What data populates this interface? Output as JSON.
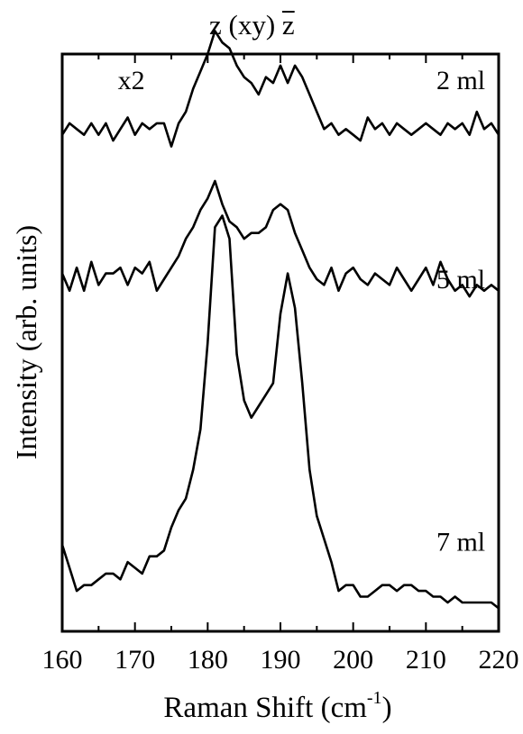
{
  "chart_data": {
    "type": "line",
    "title": "z (xy) z",
    "xlabel": "Raman Shift (cm",
    "xlabel_sup": "-1",
    "xlabel_close": ")",
    "ylabel": "Intensity (arb. units)",
    "xlim": [
      160,
      220
    ],
    "ylim": [
      0,
      10
    ],
    "xticks": [
      160,
      170,
      180,
      190,
      200,
      210,
      220
    ],
    "yticks_shown": false,
    "grid": false,
    "legend": "none",
    "line_color": "#000000",
    "annotations": [
      {
        "text": "x2",
        "x": 169.5,
        "y": 9.55
      },
      {
        "text": "2 ml",
        "x": 214.8,
        "y": 9.55
      },
      {
        "text": "5 ml",
        "x": 214.8,
        "y": 6.1
      },
      {
        "text": "7 ml",
        "x": 214.8,
        "y": 1.55
      }
    ],
    "series": [
      {
        "name": "2 ml",
        "x": [
          160,
          161,
          162,
          163,
          164,
          165,
          166,
          167,
          168,
          169,
          170,
          171,
          172,
          173,
          174,
          175,
          176,
          177,
          178,
          179,
          180,
          181,
          182,
          183,
          184,
          185,
          186,
          187,
          188,
          189,
          190,
          191,
          192,
          193,
          194,
          195,
          196,
          197,
          198,
          199,
          200,
          201,
          202,
          203,
          204,
          205,
          206,
          207,
          208,
          209,
          210,
          211,
          212,
          213,
          214,
          215,
          216,
          217,
          218,
          219,
          220
        ],
        "y": [
          8.6,
          8.8,
          8.7,
          8.6,
          8.8,
          8.6,
          8.8,
          8.5,
          8.7,
          8.9,
          8.6,
          8.8,
          8.7,
          8.8,
          8.8,
          8.4,
          8.8,
          9.0,
          9.4,
          9.7,
          10.0,
          10.4,
          10.2,
          10.1,
          9.8,
          9.6,
          9.5,
          9.3,
          9.6,
          9.5,
          9.8,
          9.5,
          9.8,
          9.6,
          9.3,
          9.0,
          8.7,
          8.8,
          8.6,
          8.7,
          8.6,
          8.5,
          8.9,
          8.7,
          8.8,
          8.6,
          8.8,
          8.7,
          8.6,
          8.7,
          8.8,
          8.7,
          8.6,
          8.8,
          8.7,
          8.8,
          8.6,
          9.0,
          8.7,
          8.8,
          8.6
        ]
      },
      {
        "name": "5 ml",
        "x": [
          160,
          161,
          162,
          163,
          164,
          165,
          166,
          167,
          168,
          169,
          170,
          171,
          172,
          173,
          174,
          175,
          176,
          177,
          178,
          179,
          180,
          181,
          182,
          183,
          184,
          185,
          186,
          187,
          188,
          189,
          190,
          191,
          192,
          193,
          194,
          195,
          196,
          197,
          198,
          199,
          200,
          201,
          202,
          203,
          204,
          205,
          206,
          207,
          208,
          209,
          210,
          211,
          212,
          213,
          214,
          215,
          216,
          217,
          218,
          219,
          220
        ],
        "y": [
          6.2,
          5.9,
          6.3,
          5.9,
          6.4,
          6.0,
          6.2,
          6.2,
          6.3,
          6.0,
          6.3,
          6.2,
          6.4,
          5.9,
          6.1,
          6.3,
          6.5,
          6.8,
          7.0,
          7.3,
          7.5,
          7.8,
          7.4,
          7.1,
          7.0,
          6.8,
          6.9,
          6.9,
          7.0,
          7.3,
          7.4,
          7.3,
          6.9,
          6.6,
          6.3,
          6.1,
          6.0,
          6.3,
          5.9,
          6.2,
          6.3,
          6.1,
          6.0,
          6.2,
          6.1,
          6.0,
          6.3,
          6.1,
          5.9,
          6.1,
          6.3,
          6.0,
          6.4,
          6.1,
          5.9,
          6.0,
          5.8,
          6.0,
          5.9,
          6.0,
          5.9
        ]
      },
      {
        "name": "7 ml",
        "x": [
          160,
          161,
          162,
          163,
          164,
          165,
          166,
          167,
          168,
          169,
          170,
          171,
          172,
          173,
          174,
          175,
          176,
          177,
          178,
          179,
          180,
          181,
          182,
          183,
          184,
          185,
          186,
          187,
          188,
          189,
          190,
          191,
          192,
          193,
          194,
          195,
          196,
          197,
          198,
          199,
          200,
          201,
          202,
          203,
          204,
          205,
          206,
          207,
          208,
          209,
          210,
          211,
          212,
          213,
          214,
          215,
          216,
          217,
          218,
          219,
          220
        ],
        "y": [
          1.5,
          1.1,
          0.7,
          0.8,
          0.8,
          0.9,
          1.0,
          1.0,
          0.9,
          1.2,
          1.1,
          1.0,
          1.3,
          1.3,
          1.4,
          1.8,
          2.1,
          2.3,
          2.8,
          3.5,
          5.0,
          7.0,
          7.2,
          6.8,
          4.8,
          4.0,
          3.7,
          3.9,
          4.1,
          4.3,
          5.5,
          6.2,
          5.6,
          4.3,
          2.8,
          2.0,
          1.6,
          1.2,
          0.7,
          0.8,
          0.8,
          0.6,
          0.6,
          0.7,
          0.8,
          0.8,
          0.7,
          0.8,
          0.8,
          0.7,
          0.7,
          0.6,
          0.6,
          0.5,
          0.6,
          0.5,
          0.5,
          0.5,
          0.5,
          0.5,
          0.4
        ]
      }
    ]
  }
}
